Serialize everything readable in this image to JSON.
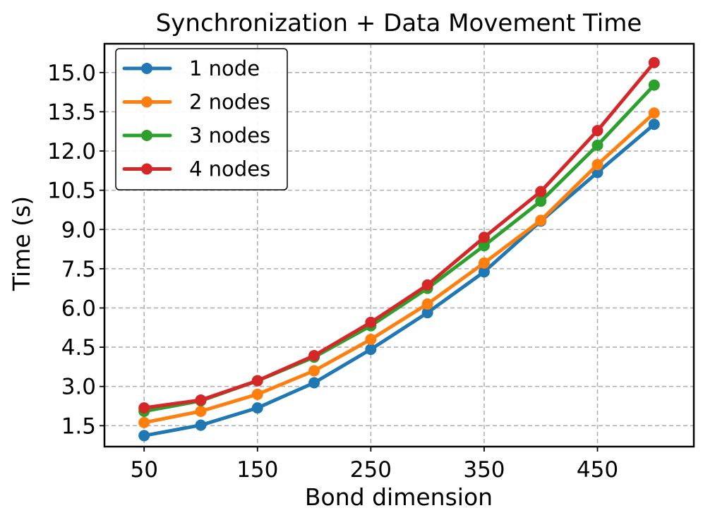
{
  "chart_data": {
    "type": "line",
    "title": "Synchronization + Data Movement Time",
    "xlabel": "Bond dimension",
    "ylabel": "Time (s)",
    "x": [
      50,
      100,
      150,
      200,
      250,
      300,
      350,
      400,
      450,
      500
    ],
    "xlim": [
      15,
      535
    ],
    "ylim": [
      0.7,
      16.1
    ],
    "xticks": [
      50,
      150,
      250,
      350,
      450
    ],
    "xtick_labels": [
      "50",
      "150",
      "250",
      "350",
      "450"
    ],
    "yticks": [
      1.5,
      3.0,
      4.5,
      6.0,
      7.5,
      9.0,
      10.5,
      12.0,
      13.5,
      15.0
    ],
    "ytick_labels": [
      "1.5",
      "3.0",
      "4.5",
      "6.0",
      "7.5",
      "9.0",
      "10.5",
      "12.0",
      "13.5",
      "15.0"
    ],
    "grid": true,
    "legend_position": "top-left",
    "series": [
      {
        "name": "1 node",
        "color": "#1f77b4",
        "values": [
          1.12,
          1.52,
          2.18,
          3.14,
          4.42,
          5.82,
          7.38,
          9.32,
          11.18,
          13.02
        ]
      },
      {
        "name": "2 nodes",
        "color": "#ff7f0e",
        "values": [
          1.62,
          2.05,
          2.7,
          3.6,
          4.8,
          6.15,
          7.72,
          9.35,
          11.48,
          13.45
        ]
      },
      {
        "name": "3 nodes",
        "color": "#2ca02c",
        "values": [
          2.05,
          2.45,
          3.22,
          4.12,
          5.32,
          6.75,
          8.38,
          10.08,
          12.22,
          14.52
        ]
      },
      {
        "name": "4 nodes",
        "color": "#d62728",
        "values": [
          2.18,
          2.48,
          3.22,
          4.18,
          5.45,
          6.88,
          8.7,
          10.45,
          12.78,
          15.38
        ]
      }
    ]
  }
}
